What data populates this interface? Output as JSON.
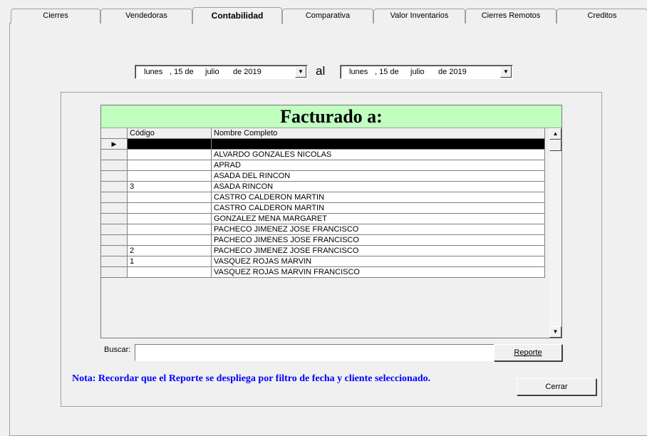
{
  "tabs": [
    "Cierres",
    "Vendedoras",
    "Contabilidad",
    "Comparativa",
    "Valor Inventarios",
    "Cierres Remotos",
    "Creditos"
  ],
  "selected_tab": "Contabilidad",
  "date_from": {
    "weekday": "lunes",
    "day": ", 15 de",
    "month": "julio",
    "year": "de 2019"
  },
  "date_sep": "al",
  "date_to": {
    "weekday": "lunes",
    "day": ", 15 de",
    "month": "julio",
    "year": "de 2019"
  },
  "grid": {
    "title": "Facturado a:",
    "columns": [
      "Código",
      "Nombre Completo"
    ],
    "rows": [
      [
        "",
        ""
      ],
      [
        "",
        "ALVARDO  GONZALES NICOLAS"
      ],
      [
        "",
        "APRAD"
      ],
      [
        "",
        "ASADA DEL RINCON"
      ],
      [
        "3",
        "ASADA RINCON"
      ],
      [
        "",
        "CASTRO  CALDERON MARTIN"
      ],
      [
        "",
        "CASTRO CALDERON MARTIN"
      ],
      [
        "",
        "GONZALEZ MENA MARGARET"
      ],
      [
        "",
        "PACHECO  JIMENEZ JOSE FRANCISCO"
      ],
      [
        "",
        "PACHECO JIMENES JOSE FRANCISCO"
      ],
      [
        "2",
        "PACHECO JIMENEZ JOSE FRANCISCO"
      ],
      [
        "1",
        "VASQUEZ ROJAS MARVIN"
      ],
      [
        "",
        "VASQUEZ ROJAS MARVIN FRANCISCO"
      ]
    ]
  },
  "search": {
    "label": "Buscar:",
    "value": ""
  },
  "buttons": {
    "report": "Reporte",
    "close": "Cerrar"
  },
  "note": "Nota: Recordar que el Reporte se despliega por filtro de fecha y cliente seleccionado.",
  "colors": {
    "title_bg": "#c0ffc0",
    "note": "#0000ff"
  }
}
